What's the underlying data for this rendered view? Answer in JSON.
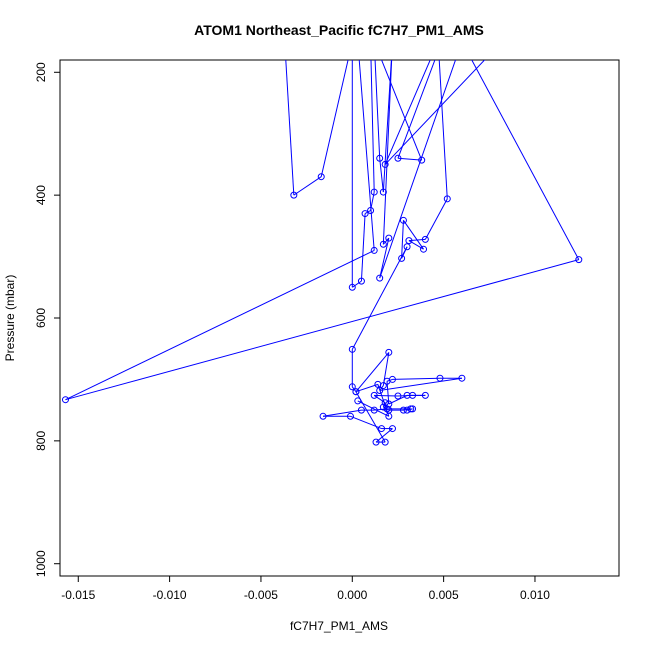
{
  "chart_data": {
    "type": "line",
    "title": "ATOM1 Northeast_Pacific fC7H7_PM1_AMS",
    "xlabel": "fC7H7_PM1_AMS",
    "ylabel": "Pressure (mbar)",
    "xlim": [
      -0.016,
      0.0146
    ],
    "ylim": [
      1020,
      180
    ],
    "y_reversed": true,
    "x_ticks": [
      -0.015,
      -0.01,
      -0.005,
      0.0,
      0.005,
      0.01
    ],
    "x_tick_labels": [
      "-0.015",
      "-0.010",
      "-0.005",
      "0.000",
      "0.005",
      "0.010"
    ],
    "y_ticks": [
      200,
      400,
      600,
      800,
      1000
    ],
    "y_tick_labels": [
      "200",
      "400",
      "600",
      "800",
      "1000"
    ],
    "grid": false,
    "series_color": "#0000ff",
    "series": [
      {
        "marker": "open-circle",
        "line": true,
        "points": [
          [
            -0.0037,
            150
          ],
          [
            -0.0032,
            400
          ],
          [
            -0.0017,
            370
          ],
          [
            0.0,
            150
          ],
          [
            0.0,
            550
          ],
          [
            0.0005,
            540
          ],
          [
            0.0007,
            430
          ],
          [
            0.001,
            425
          ],
          [
            0.0012,
            395
          ],
          [
            0.001,
            150
          ],
          [
            0.0003,
            150
          ],
          [
            0.0012,
            490
          ],
          [
            -0.0157,
            733
          ],
          [
            0.0124,
            505
          ],
          [
            0.006,
            150
          ],
          [
            0.0015,
            535
          ],
          [
            0.002,
            470
          ],
          [
            0.0017,
            480
          ],
          [
            0.0022,
            150
          ],
          [
            0.0017,
            395
          ],
          [
            0.0015,
            340
          ],
          [
            0.0012,
            150
          ],
          [
            0.0038,
            343
          ],
          [
            0.0025,
            340
          ],
          [
            0.0049,
            150
          ],
          [
            0.0082,
            150
          ],
          [
            0.0018,
            350
          ],
          [
            0.0047,
            150
          ],
          [
            0.0052,
            406
          ],
          [
            0.004,
            472
          ],
          [
            0.0031,
            474
          ],
          [
            0.0039,
            488
          ],
          [
            0.0028,
            441
          ],
          [
            0.0027,
            503
          ],
          [
            0.003,
            484
          ],
          [
            0.0,
            651
          ],
          [
            0.0,
            712
          ],
          [
            0.0002,
            720
          ],
          [
            0.002,
            656
          ],
          [
            0.0017,
            710
          ],
          [
            0.0015,
            718
          ],
          [
            0.006,
            698
          ],
          [
            0.0048,
            698
          ],
          [
            0.0022,
            700
          ],
          [
            0.0019,
            703
          ],
          [
            0.002,
            740
          ],
          [
            0.003,
            726
          ],
          [
            0.004,
            726
          ],
          [
            0.0033,
            726
          ],
          [
            0.0025,
            727
          ],
          [
            0.0012,
            726
          ],
          [
            0.0018,
            738
          ],
          [
            0.0017,
            745
          ],
          [
            0.002,
            750
          ],
          [
            0.0028,
            750
          ],
          [
            0.0033,
            748
          ],
          [
            0.003,
            750
          ],
          [
            0.0032,
            748
          ],
          [
            0.0019,
            748
          ],
          [
            0.0012,
            750
          ],
          [
            0.0005,
            750
          ],
          [
            -0.0016,
            760
          ],
          [
            -0.0001,
            760
          ],
          [
            0.0016,
            780
          ],
          [
            0.0022,
            780
          ],
          [
            0.0013,
            802
          ],
          [
            0.0018,
            802
          ],
          [
            0.0002,
            720
          ],
          [
            0.0014,
            708
          ],
          [
            0.002,
            760
          ],
          [
            0.0003,
            735
          ]
        ]
      }
    ]
  }
}
